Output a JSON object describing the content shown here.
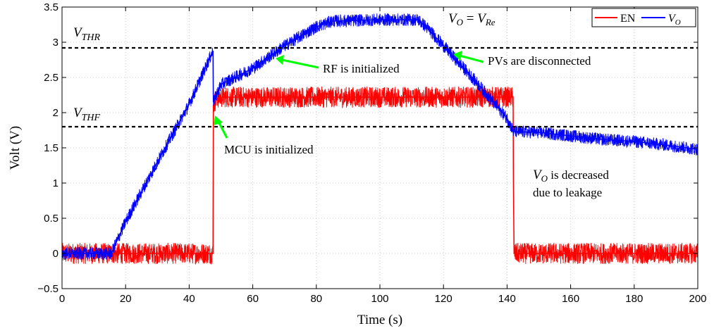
{
  "chart_data": {
    "type": "line",
    "title": "",
    "xlabel": "Time (s)",
    "ylabel": "Volt (V)",
    "xlim": [
      0,
      200
    ],
    "ylim": [
      -0.5,
      3.5
    ],
    "xticks": [
      "0",
      "20",
      "40",
      "60",
      "80",
      "100",
      "120",
      "140",
      "160",
      "180",
      "200"
    ],
    "yticks": [
      "−0.5",
      "0",
      "0.5",
      "1",
      "1.5",
      "2",
      "2.5",
      "3",
      "3.5"
    ],
    "grid": true,
    "legend_position": "top-right",
    "series": [
      {
        "name": "EN",
        "color": "#ff0000",
        "x": [
          0,
          47.5,
          47.6,
          48.5,
          50,
          55,
          60,
          80,
          100,
          120,
          136,
          141.9,
          142,
          142.2,
          160,
          180,
          200
        ],
        "y": [
          0,
          0,
          2.1,
          2.2,
          2.22,
          2.22,
          2.22,
          2.22,
          2.22,
          2.22,
          2.22,
          2.22,
          1.0,
          0,
          0,
          0,
          0
        ],
        "noise": 0.15
      },
      {
        "name": "V_O",
        "color": "#0000ff",
        "x": [
          0,
          15.5,
          17,
          20,
          30,
          40,
          47.5,
          47.6,
          50,
          60,
          70,
          80,
          85,
          100,
          112,
          115,
          120,
          130,
          140,
          142,
          150,
          160,
          170,
          180,
          190,
          200
        ],
        "y": [
          0,
          0,
          0.15,
          0.45,
          1.3,
          2.12,
          2.88,
          2.15,
          2.4,
          2.63,
          2.95,
          3.22,
          3.3,
          3.32,
          3.32,
          3.2,
          2.95,
          2.45,
          1.92,
          1.73,
          1.72,
          1.67,
          1.62,
          1.59,
          1.54,
          1.48
        ],
        "noise": 0.09
      }
    ],
    "reference_lines": [
      {
        "label": "V_THR",
        "y": 2.92,
        "style": "dashed",
        "color": "#000000"
      },
      {
        "label": "V_THF",
        "y": 1.8,
        "style": "dashed",
        "color": "#000000"
      }
    ],
    "annotations": [
      {
        "text": "MCU is initialized",
        "arrow_to": [
          47.8,
          2.05
        ],
        "color": "#00ff00"
      },
      {
        "text": "RF is initialized",
        "arrow_to": [
          67,
          2.78
        ],
        "color": "#00ff00"
      },
      {
        "text": "PVs are disconnected",
        "arrow_to": [
          123,
          2.85
        ],
        "color": "#00ff00"
      },
      {
        "text": "V_O = V_Re"
      },
      {
        "text": "V_O is decreased"
      },
      {
        "text": "due to leakage"
      }
    ]
  },
  "legend": {
    "en_label": "EN",
    "vo_label_main": "V",
    "vo_label_sub": "O"
  },
  "labels": {
    "vthr_main": "V",
    "vthr_sub": "THR",
    "vthf_main": "V",
    "vthf_sub": "THF",
    "vo_re_left": "V",
    "vo_re_left_sub": "O",
    "vo_re_eq": " = ",
    "vo_re_right": "V",
    "vo_re_right_sub": "Re",
    "mcu": "MCU is initialized",
    "rf": "RF is initialized",
    "pvs": "PVs are disconnected",
    "vo_dec_main": "V",
    "vo_dec_sub": "O",
    "vo_dec_rest": " is decreased",
    "leakage": "due to leakage"
  }
}
